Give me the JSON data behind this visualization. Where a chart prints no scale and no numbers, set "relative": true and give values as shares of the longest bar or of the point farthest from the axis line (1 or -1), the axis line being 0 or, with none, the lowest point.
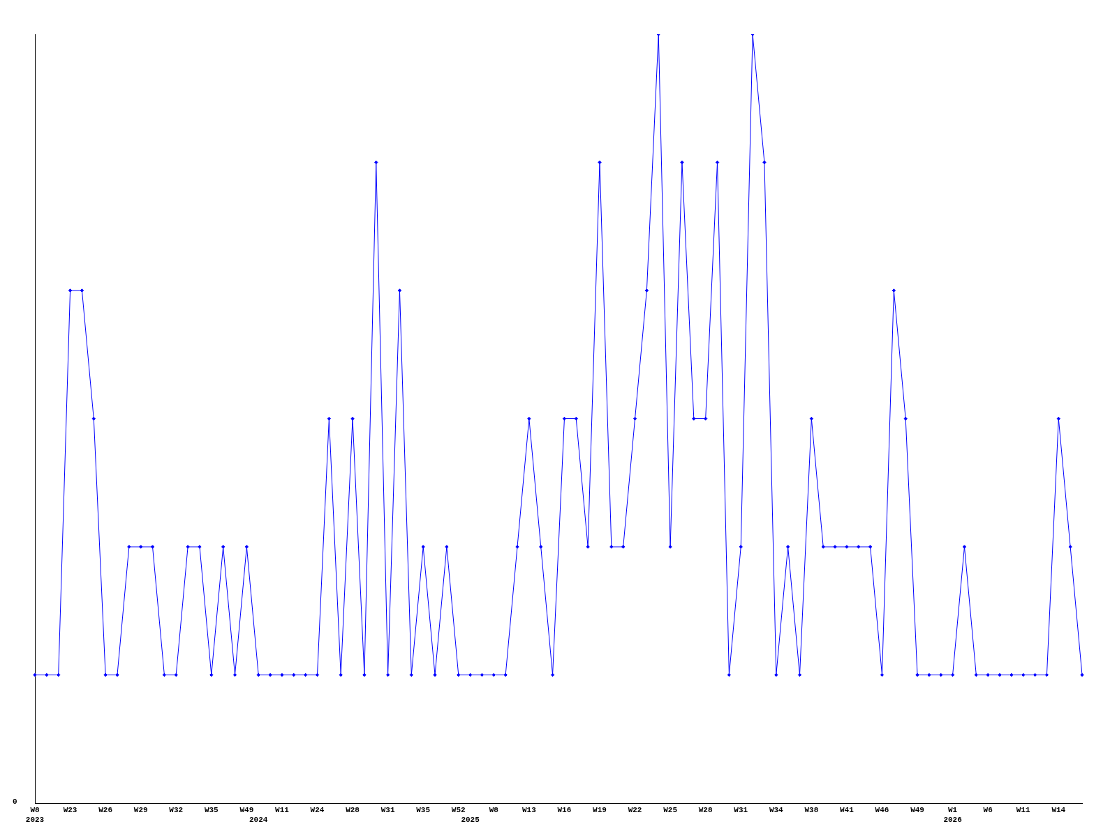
{
  "chart_data": {
    "type": "line",
    "relative": true,
    "annotations": [
      "0"
    ],
    "color": "#0000ff",
    "marker": "diamond",
    "grid": false,
    "legend": false,
    "categories": [
      "W8\n2023",
      null,
      null,
      "W23",
      null,
      null,
      "W26",
      null,
      null,
      "W29",
      null,
      null,
      "W32",
      null,
      null,
      "W35",
      null,
      null,
      "W49",
      "\n2024",
      null,
      "W11",
      null,
      null,
      "W24",
      null,
      null,
      "W28",
      null,
      null,
      "W31",
      null,
      null,
      "W35",
      null,
      null,
      "W52",
      "\n2025",
      null,
      "W8",
      null,
      null,
      "W13",
      null,
      null,
      "W16",
      null,
      null,
      "W19",
      null,
      null,
      "W22",
      null,
      null,
      "W25",
      null,
      null,
      "W28",
      null,
      null,
      "W31",
      null,
      null,
      "W34",
      null,
      null,
      "W38",
      null,
      null,
      "W41",
      null,
      null,
      "W46",
      null,
      null,
      "W49",
      null,
      null,
      "W1\n2026",
      null,
      null,
      "W6",
      null,
      null,
      "W11",
      null,
      null,
      "W14",
      null,
      null
    ],
    "values": [
      0.1667,
      0.1667,
      0.1667,
      0.6667,
      0.6667,
      0.5,
      0.1667,
      0.1667,
      0.3333,
      0.3333,
      0.3333,
      0.1667,
      0.1667,
      0.3333,
      0.3333,
      0.1667,
      0.3333,
      0.1667,
      0.3333,
      0.1667,
      0.1667,
      0.1667,
      0.1667,
      0.1667,
      0.1667,
      0.5,
      0.1667,
      0.5,
      0.1667,
      0.8333,
      0.1667,
      0.6667,
      0.1667,
      0.3333,
      0.1667,
      0.3333,
      0.1667,
      0.1667,
      0.1667,
      0.1667,
      0.1667,
      0.3333,
      0.5,
      0.3333,
      0.1667,
      0.5,
      0.5,
      0.3333,
      0.8333,
      0.3333,
      0.3333,
      0.5,
      0.6667,
      1,
      0.3333,
      0.8333,
      0.5,
      0.5,
      0.8333,
      0.1667,
      0.3333,
      1,
      0.8333,
      0.1667,
      0.3333,
      0.1667,
      0.5,
      0.3333,
      0.3333,
      0.3333,
      0.3333,
      0.3333,
      0.1667,
      0.6667,
      0.5,
      0.1667,
      0.1667,
      0.1667,
      0.1667,
      0.3333,
      0.1667,
      0.1667,
      0.1667,
      0.1667,
      0.1667,
      0.1667,
      0.1667,
      0.5,
      0.3333,
      0.1667
    ]
  }
}
